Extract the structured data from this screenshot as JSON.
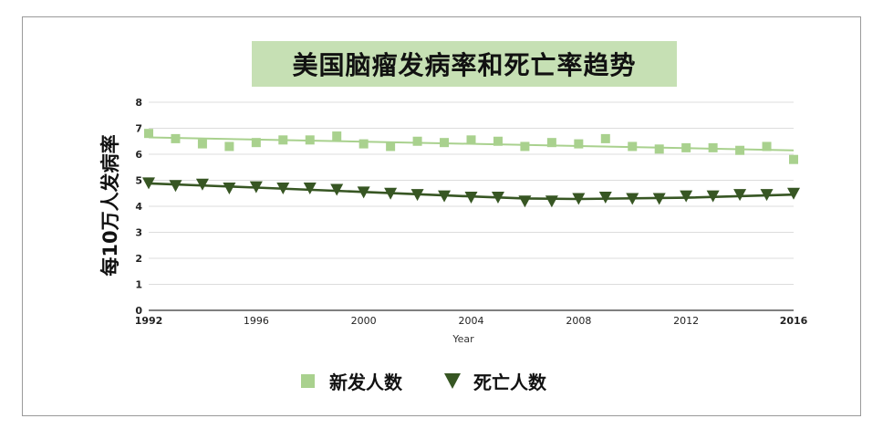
{
  "colors": {
    "incidence": "#a9d18e",
    "mortality": "#375623",
    "title_bg": "#c6e0b4",
    "grid": "#dcdcdc"
  },
  "chart_data": {
    "type": "scatter",
    "title": "美国脑瘤发病率和死亡率趋势",
    "xlabel": "Year",
    "ylabel": "每10万人发病率",
    "xlim": [
      1992,
      2016
    ],
    "ylim": [
      0,
      8
    ],
    "x_ticks": [
      "1992",
      "1996",
      "2000",
      "2004",
      "2008",
      "2012",
      "2016"
    ],
    "y_ticks": [
      "0",
      "1",
      "2",
      "3",
      "4",
      "5",
      "6",
      "7",
      "8"
    ],
    "grid": true,
    "legend_position": "bottom",
    "x": [
      1992,
      1993,
      1994,
      1995,
      1996,
      1997,
      1998,
      1999,
      2000,
      2001,
      2002,
      2003,
      2004,
      2005,
      2006,
      2007,
      2008,
      2009,
      2010,
      2011,
      2012,
      2013,
      2014,
      2015,
      2016
    ],
    "series": [
      {
        "name": "新发人数",
        "marker": "square",
        "values": [
          6.8,
          6.6,
          6.4,
          6.3,
          6.45,
          6.55,
          6.55,
          6.7,
          6.4,
          6.3,
          6.5,
          6.45,
          6.55,
          6.5,
          6.3,
          6.45,
          6.4,
          6.6,
          6.3,
          6.2,
          6.25,
          6.25,
          6.15,
          6.3,
          5.8
        ],
        "trend": [
          [
            1992,
            6.65
          ],
          [
            2016,
            6.15
          ]
        ]
      },
      {
        "name": "死亡人数",
        "marker": "triangle-down",
        "values": [
          4.9,
          4.8,
          4.85,
          4.7,
          4.75,
          4.7,
          4.7,
          4.65,
          4.55,
          4.5,
          4.45,
          4.4,
          4.35,
          4.35,
          4.2,
          4.2,
          4.3,
          4.35,
          4.3,
          4.3,
          4.4,
          4.4,
          4.45,
          4.45,
          4.5
        ],
        "trend": [
          [
            1992,
            4.88
          ],
          [
            1996,
            4.72
          ],
          [
            2000,
            4.55
          ],
          [
            2004,
            4.38
          ],
          [
            2006,
            4.3
          ],
          [
            2008,
            4.28
          ],
          [
            2012,
            4.33
          ],
          [
            2016,
            4.45
          ]
        ]
      }
    ]
  }
}
